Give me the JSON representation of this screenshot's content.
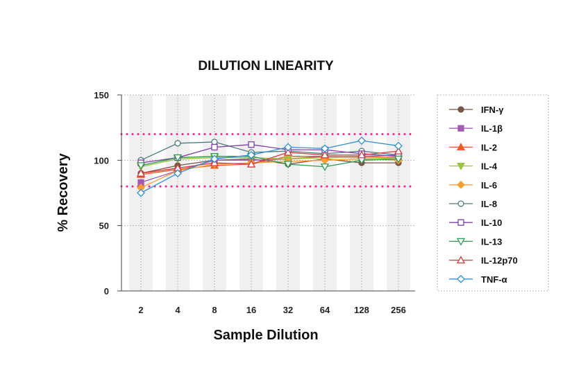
{
  "chart_data": {
    "type": "line",
    "title": "DILUTION LINEARITY",
    "xlabel": "Sample Dilution",
    "ylabel": "% Recovery",
    "categories": [
      "2",
      "4",
      "8",
      "16",
      "32",
      "64",
      "128",
      "256"
    ],
    "ylim": [
      0,
      150
    ],
    "yticks": [
      "0",
      "50",
      "100",
      "150"
    ],
    "grid": "vertical dotted lines with alternating shaded bands",
    "reference_lines": [
      80,
      120
    ],
    "reference_color": "#ff1493",
    "legend_position": "right",
    "series": [
      {
        "name": "IFN-γ",
        "color": "#7a5646",
        "marker": "circle-filled",
        "values": [
          90,
          96,
          100,
          101,
          97,
          101,
          98,
          98
        ]
      },
      {
        "name": "IL-1β",
        "color": "#a35bb0",
        "marker": "square-filled",
        "values": [
          83,
          92,
          100,
          100,
          101,
          103,
          103,
          104
        ]
      },
      {
        "name": "IL-2",
        "color": "#f05a22",
        "marker": "triangle-up-filled",
        "values": [
          89,
          93,
          96,
          97,
          103,
          103,
          103,
          102
        ]
      },
      {
        "name": "IL-4",
        "color": "#9bc43f",
        "marker": "triangle-down-filled",
        "values": [
          95,
          101,
          102,
          102,
          101,
          102,
          102,
          101
        ]
      },
      {
        "name": "IL-6",
        "color": "#f5a031",
        "marker": "diamond-filled",
        "values": [
          79,
          92,
          97,
          98,
          99,
          100,
          101,
          100
        ]
      },
      {
        "name": "IL-8",
        "color": "#4f7a7e",
        "marker": "circle-open",
        "values": [
          100,
          113,
          114,
          106,
          107,
          105,
          107,
          104
        ]
      },
      {
        "name": "IL-10",
        "color": "#7d3fa8",
        "marker": "square-open",
        "values": [
          98,
          102,
          110,
          112,
          108,
          108,
          105,
          103
        ]
      },
      {
        "name": "IL-13",
        "color": "#2f9a56",
        "marker": "triangle-down-open",
        "values": [
          96,
          102,
          103,
          103,
          97,
          95,
          100,
          101
        ]
      },
      {
        "name": "IL-12p70",
        "color": "#d9383a",
        "marker": "triangle-up-open",
        "values": [
          90,
          94,
          98,
          97,
          106,
          104,
          104,
          107
        ]
      },
      {
        "name": "TNF-α",
        "color": "#2f8fd6",
        "marker": "diamond-open",
        "values": [
          75,
          90,
          101,
          104,
          110,
          109,
          115,
          111
        ]
      }
    ]
  }
}
